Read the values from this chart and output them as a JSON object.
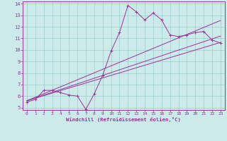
{
  "xlabel": "Windchill (Refroidissement éolien,°C)",
  "bg_color": "#cceaea",
  "line_color": "#993399",
  "grid_color": "#99cccc",
  "xlim": [
    -0.5,
    23.5
  ],
  "ylim": [
    4.8,
    14.2
  ],
  "xticks": [
    0,
    1,
    2,
    3,
    4,
    5,
    6,
    7,
    8,
    9,
    10,
    11,
    12,
    13,
    14,
    15,
    16,
    17,
    18,
    19,
    20,
    21,
    22,
    23
  ],
  "yticks": [
    5,
    6,
    7,
    8,
    9,
    10,
    11,
    12,
    13,
    14
  ],
  "line1_x": [
    0,
    1,
    2,
    3,
    4,
    5,
    6,
    7,
    8,
    9,
    10,
    11,
    12,
    13,
    14,
    15,
    16,
    17,
    18,
    19,
    20,
    21,
    22,
    23
  ],
  "line1_y": [
    5.5,
    5.7,
    6.5,
    6.5,
    6.3,
    6.1,
    6.0,
    4.85,
    6.2,
    7.8,
    9.9,
    11.5,
    13.85,
    13.3,
    12.6,
    13.2,
    12.6,
    11.3,
    11.15,
    11.3,
    11.5,
    11.6,
    10.85,
    10.6
  ],
  "line2_x": [
    0,
    23
  ],
  "line2_y": [
    5.6,
    10.65
  ],
  "line3_x": [
    0,
    23
  ],
  "line3_y": [
    5.6,
    11.2
  ],
  "line4_x": [
    0,
    23
  ],
  "line4_y": [
    5.6,
    12.55
  ]
}
